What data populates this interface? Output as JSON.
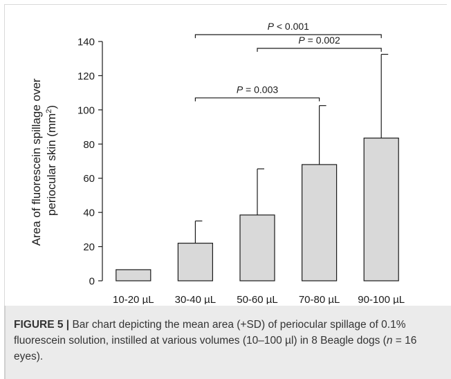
{
  "chart_data": {
    "type": "bar",
    "categories": [
      "10-20 µL",
      "30-40 µL",
      "50-60 µL",
      "70-80 µL",
      "90-100 µL"
    ],
    "values": [
      6.5,
      22,
      38.5,
      68,
      83.5
    ],
    "sd": [
      0,
      13,
      27,
      34.5,
      49
    ],
    "ylabel_line1": "Area of fluorescein spillage over",
    "ylabel_line2": "periocular skin (mm",
    "ylabel_sup": "2",
    "ylabel_close": ")",
    "ylim": [
      0,
      140
    ],
    "yticks": [
      0,
      20,
      40,
      60,
      80,
      100,
      120,
      140
    ],
    "bar_color": "#d9d9d9",
    "significance": [
      {
        "from": 1,
        "to": 4,
        "y": 144,
        "p_label": "P",
        "p_text": " < 0.001"
      },
      {
        "from": 2,
        "to": 4,
        "y": 136,
        "p_label": "P",
        "p_text": " = 0.002"
      },
      {
        "from": 1,
        "to": 3,
        "y": 107,
        "p_label": "P",
        "p_text": " = 0.003"
      }
    ]
  },
  "caption": {
    "label": "FIGURE 5 |",
    "text1": " Bar chart depicting the mean area (+SD) of periocular spillage of 0.1% fluorescein solution, instilled at various volumes (10–100 µl) in 8 Beagle dogs (",
    "n_label": "n",
    "text2": " = 16 eyes)."
  }
}
